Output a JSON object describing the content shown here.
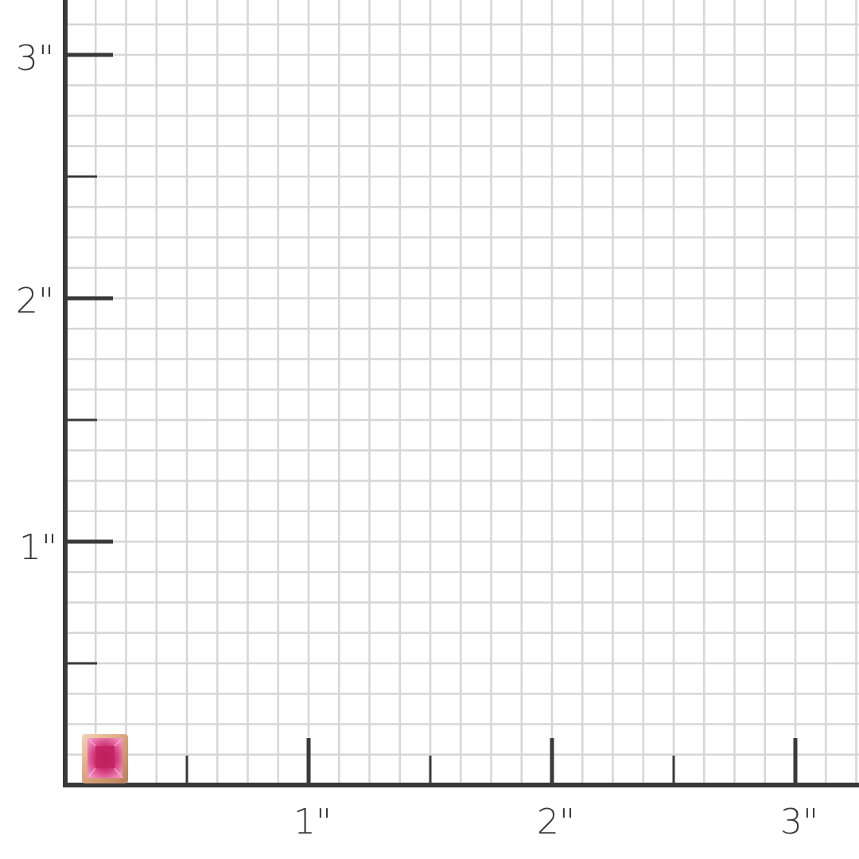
{
  "scale": {
    "unit": "inch",
    "x_labels": [
      "1\"",
      "2\"",
      "3\""
    ],
    "y_labels": [
      "1\"",
      "2\"",
      "3\""
    ],
    "grid_subdivisions_per_inch": 8,
    "colors": {
      "axis": "#3a3a3a",
      "grid": "#d6d6d6",
      "background": "#ffffff"
    }
  },
  "product": {
    "type": "princess-cut gemstone stud earring in bezel setting",
    "colors": {
      "stone": "#e0508f",
      "stone_center": "#c21f5e",
      "metal": "#e2b08a"
    }
  }
}
